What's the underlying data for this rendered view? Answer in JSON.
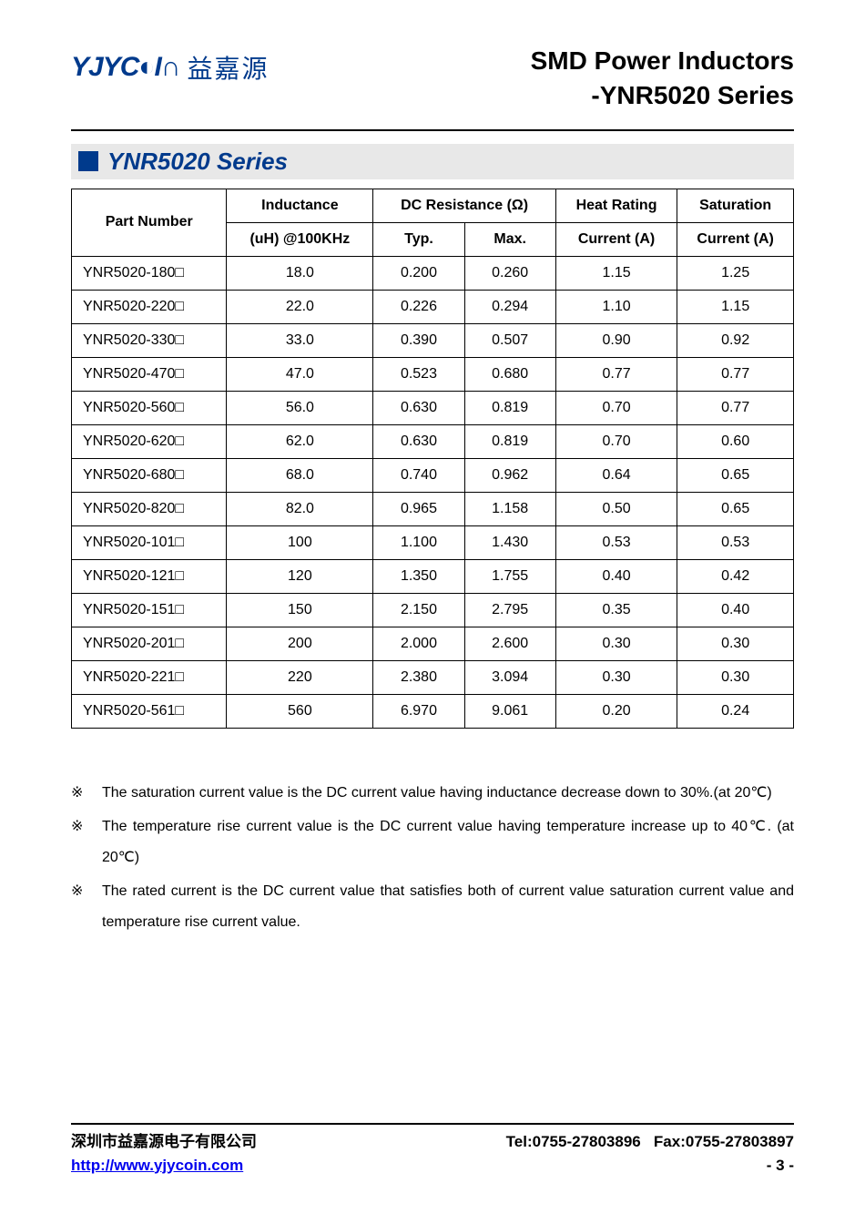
{
  "logo": {
    "mark": "YJYC◐I∩",
    "cn": "益嘉源"
  },
  "header": {
    "line1": "SMD Power Inductors",
    "line2": "-YNR5020 Series"
  },
  "section": {
    "title": "YNR5020 Series"
  },
  "table": {
    "columns": {
      "part_number": "Part Number",
      "inductance_top": "Inductance",
      "inductance_sub": "(uH) @100KHz",
      "dcr": "DC Resistance (Ω)",
      "dcr_typ": "Typ.",
      "dcr_max": "Max.",
      "heat_top": "Heat Rating",
      "heat_sub": "Current (A)",
      "sat_top": "Saturation",
      "sat_sub": "Current (A)"
    },
    "rows": [
      {
        "pn": "YNR5020-180□",
        "ind": "18.0",
        "typ": "0.200",
        "max": "0.260",
        "heat": "1.15",
        "sat": "1.25"
      },
      {
        "pn": "YNR5020-220□",
        "ind": "22.0",
        "typ": "0.226",
        "max": "0.294",
        "heat": "1.10",
        "sat": "1.15"
      },
      {
        "pn": "YNR5020-330□",
        "ind": "33.0",
        "typ": "0.390",
        "max": "0.507",
        "heat": "0.90",
        "sat": "0.92"
      },
      {
        "pn": "YNR5020-470□",
        "ind": "47.0",
        "typ": "0.523",
        "max": "0.680",
        "heat": "0.77",
        "sat": "0.77"
      },
      {
        "pn": "YNR5020-560□",
        "ind": "56.0",
        "typ": "0.630",
        "max": "0.819",
        "heat": "0.70",
        "sat": "0.77"
      },
      {
        "pn": "YNR5020-620□",
        "ind": "62.0",
        "typ": "0.630",
        "max": "0.819",
        "heat": "0.70",
        "sat": "0.60"
      },
      {
        "pn": "YNR5020-680□",
        "ind": "68.0",
        "typ": "0.740",
        "max": "0.962",
        "heat": "0.64",
        "sat": "0.65"
      },
      {
        "pn": "YNR5020-820□",
        "ind": "82.0",
        "typ": "0.965",
        "max": "1.158",
        "heat": "0.50",
        "sat": "0.65"
      },
      {
        "pn": "YNR5020-101□",
        "ind": "100",
        "typ": "1.100",
        "max": "1.430",
        "heat": "0.53",
        "sat": "0.53"
      },
      {
        "pn": "YNR5020-121□",
        "ind": "120",
        "typ": "1.350",
        "max": "1.755",
        "heat": "0.40",
        "sat": "0.42"
      },
      {
        "pn": "YNR5020-151□",
        "ind": "150",
        "typ": "2.150",
        "max": "2.795",
        "heat": "0.35",
        "sat": "0.40"
      },
      {
        "pn": "YNR5020-201□",
        "ind": "200",
        "typ": "2.000",
        "max": "2.600",
        "heat": "0.30",
        "sat": "0.30"
      },
      {
        "pn": "YNR5020-221□",
        "ind": "220",
        "typ": "2.380",
        "max": "3.094",
        "heat": "0.30",
        "sat": "0.30"
      },
      {
        "pn": "YNR5020-561□",
        "ind": "560",
        "typ": "6.970",
        "max": "9.061",
        "heat": "0.20",
        "sat": "0.24"
      }
    ]
  },
  "notes": {
    "marker": "※",
    "items": [
      "The saturation current value is the DC current value having inductance decrease down to 30%.(at 20℃)",
      "The temperature rise current value is the DC current value having temperature increase up to 40℃. (at 20℃)",
      "The rated current is the DC current value that satisfies both of current value saturation current value and temperature rise current value."
    ]
  },
  "footer": {
    "company": "深圳市益嘉源电子有限公司",
    "url": "http://www.yjycoin.com",
    "tel": "Tel:0755-27803896",
    "fax": "Fax:0755-27803897",
    "page": "- 3 -"
  }
}
